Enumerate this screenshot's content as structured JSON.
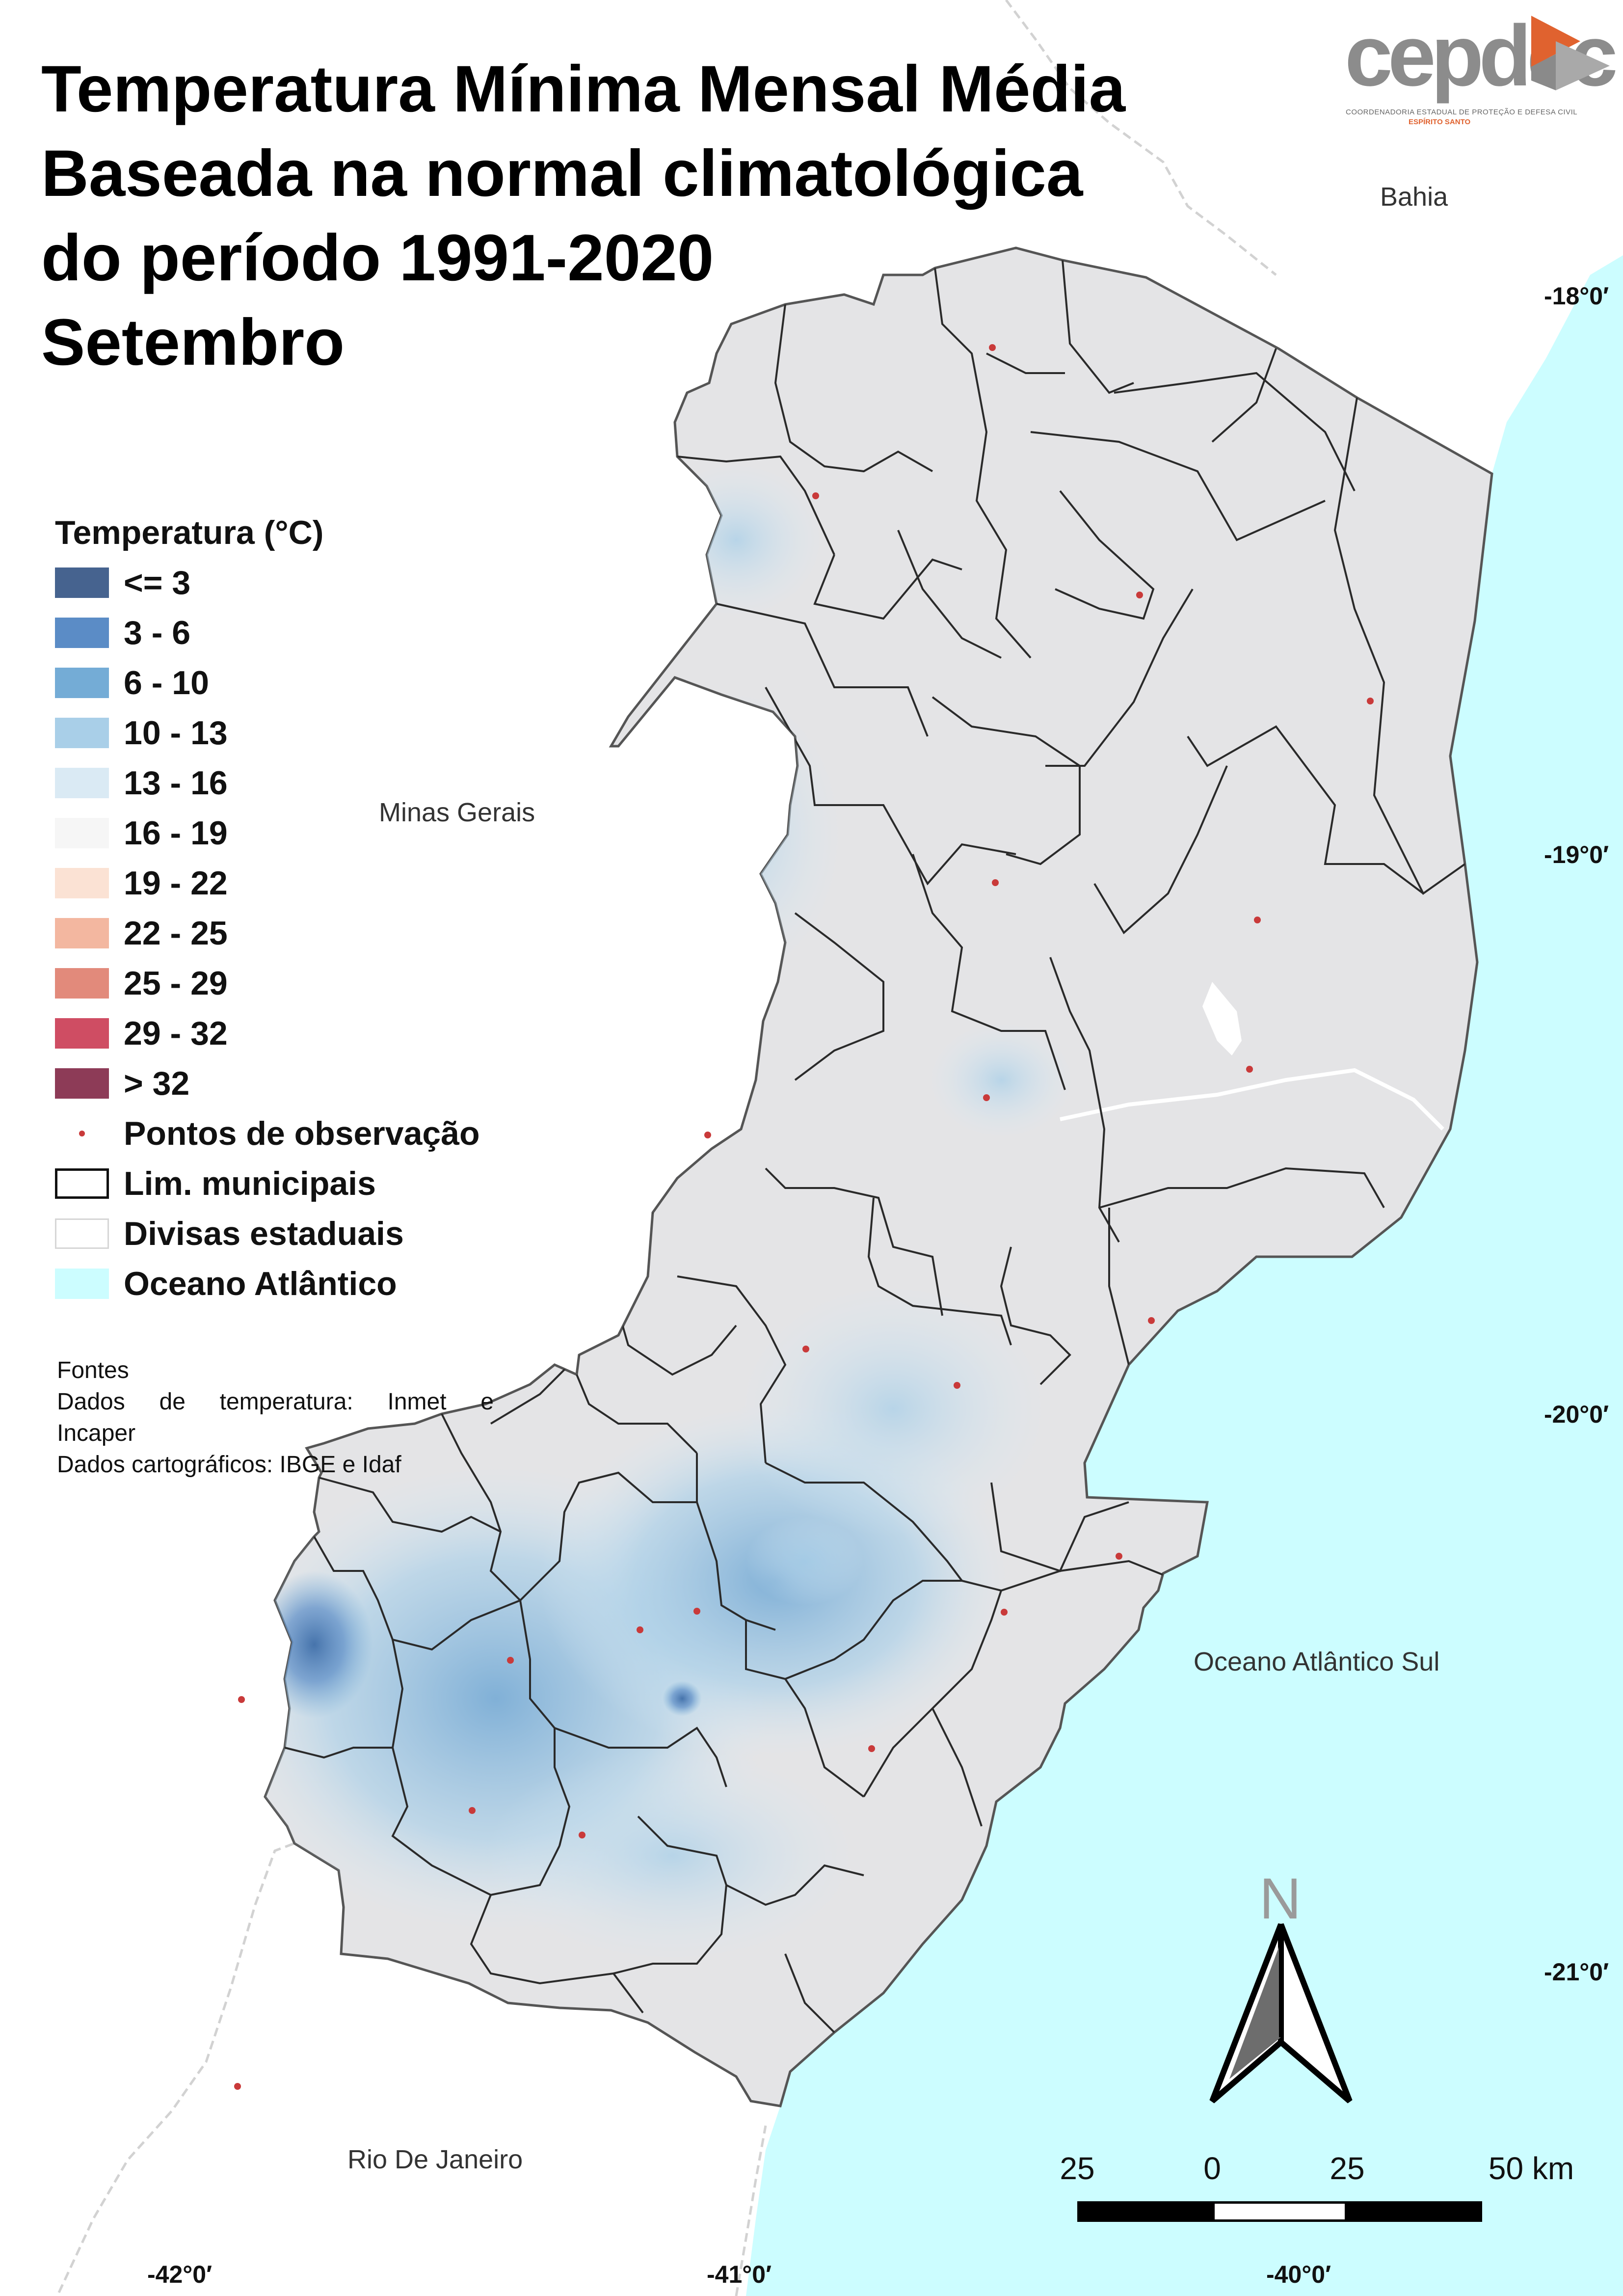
{
  "title": {
    "lines": [
      "Temperatura Mínima Mensal Média",
      "Baseada na normal climatológica",
      "do período 1991-2020",
      "Setembro"
    ]
  },
  "logo": {
    "text": "cepdec",
    "subtitle": "COORDENADORIA ESTADUAL DE PROTEÇÃO E DEFESA CIVIL",
    "state": "ESPÍRITO SANTO",
    "color_primary": "#8c8c8c",
    "color_accent": "#e0622f"
  },
  "legend": {
    "title": "Temperatura (°C)",
    "classes": [
      {
        "label": "<= 3",
        "color": "#46638f"
      },
      {
        "label": "3 - 6",
        "color": "#5b8cc6"
      },
      {
        "label": "6 - 10",
        "color": "#74acd6"
      },
      {
        "label": "10 - 13",
        "color": "#a9cfe8"
      },
      {
        "label": "13 - 16",
        "color": "#daeaf4"
      },
      {
        "label": "16 - 19",
        "color": "#f6f6f6"
      },
      {
        "label": "19 - 22",
        "color": "#fbe2d4"
      },
      {
        "label": "22 - 25",
        "color": "#f3b7a0"
      },
      {
        "label": "25 - 29",
        "color": "#e28a7b"
      },
      {
        "label": "29 - 32",
        "color": "#cf4d63"
      },
      {
        "label": "> 32",
        "color": "#8d3b57"
      }
    ],
    "points_label": "Pontos de observação",
    "municipal_label": "Lim. municipais",
    "state_label": "Divisas estaduais",
    "ocean_label": "Oceano Atlântico",
    "ocean_color": "#ccfdff",
    "point_color": "#c93a3a"
  },
  "sources": {
    "heading": "Fontes",
    "line1": "Dados de temperatura: Inmet e",
    "line2": "Incaper",
    "line3": "Dados cartográficos: IBGE e Idaf"
  },
  "labels": {
    "bahia": "Bahia",
    "minas": "Minas Gerais",
    "rio": "Rio De Janeiro",
    "ocean": "Oceano Atlântico Sul"
  },
  "coordinates": {
    "lat_18": "-18°0′",
    "lat_19": "-19°0′",
    "lat_20": "-20°0′",
    "lat_21": "-21°0′",
    "lon_42": "-42°0′",
    "lon_41": "-41°0′",
    "lon_40": "-40°0′"
  },
  "north_arrow": {
    "label": "N"
  },
  "scale_bar": {
    "ticks": [
      "25",
      "0",
      "25",
      "50 km"
    ]
  }
}
